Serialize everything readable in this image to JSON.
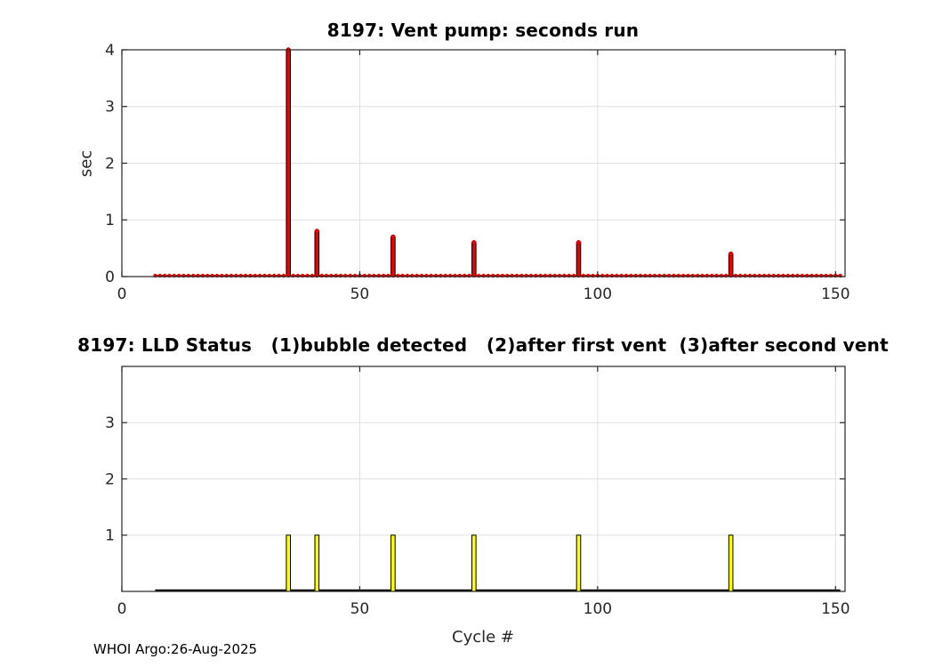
{
  "figure": {
    "background": "#ffffff",
    "credit": "WHOI Argo:26-Aug-2025"
  },
  "chart_data": [
    {
      "type": "bar",
      "title": "8197: Vent pump: seconds run",
      "ylabel": "sec",
      "xlabel": "",
      "xlim": [
        0,
        152
      ],
      "ylim": [
        0,
        4
      ],
      "xticks": [
        0,
        50,
        100,
        150
      ],
      "yticks": [
        0,
        1,
        2,
        3,
        4
      ],
      "grid": true,
      "legend": "none",
      "bar_color": "#f00000",
      "bar_edge_color": "#000000",
      "marker": "filled-circle",
      "marker_color": "#f00000",
      "data_cycle_range": [
        7,
        151
      ],
      "baseline_value": 0,
      "events": {
        "cycles": [
          35,
          41,
          57,
          74,
          96,
          128
        ],
        "seconds": [
          4.0,
          0.8,
          0.7,
          0.6,
          0.6,
          0.4
        ]
      }
    },
    {
      "type": "bar",
      "title": "8197: LLD Status   (1)bubble detected   (2)after first vent  (3)after second vent",
      "ylabel": "",
      "xlabel": "Cycle #",
      "xlim": [
        0,
        152
      ],
      "ylim": [
        0,
        4
      ],
      "xticks": [
        0,
        50,
        100,
        150
      ],
      "yticks": [
        1,
        2,
        3
      ],
      "grid": true,
      "legend": "none",
      "bar_color": "#ffff00",
      "bar_edge_color": "#000000",
      "marker": "none",
      "data_cycle_range": [
        7,
        151
      ],
      "baseline_value": 0,
      "events": {
        "cycles": [
          35,
          41,
          57,
          74,
          96,
          128
        ],
        "status": [
          1,
          1,
          1,
          1,
          1,
          1
        ]
      }
    }
  ]
}
